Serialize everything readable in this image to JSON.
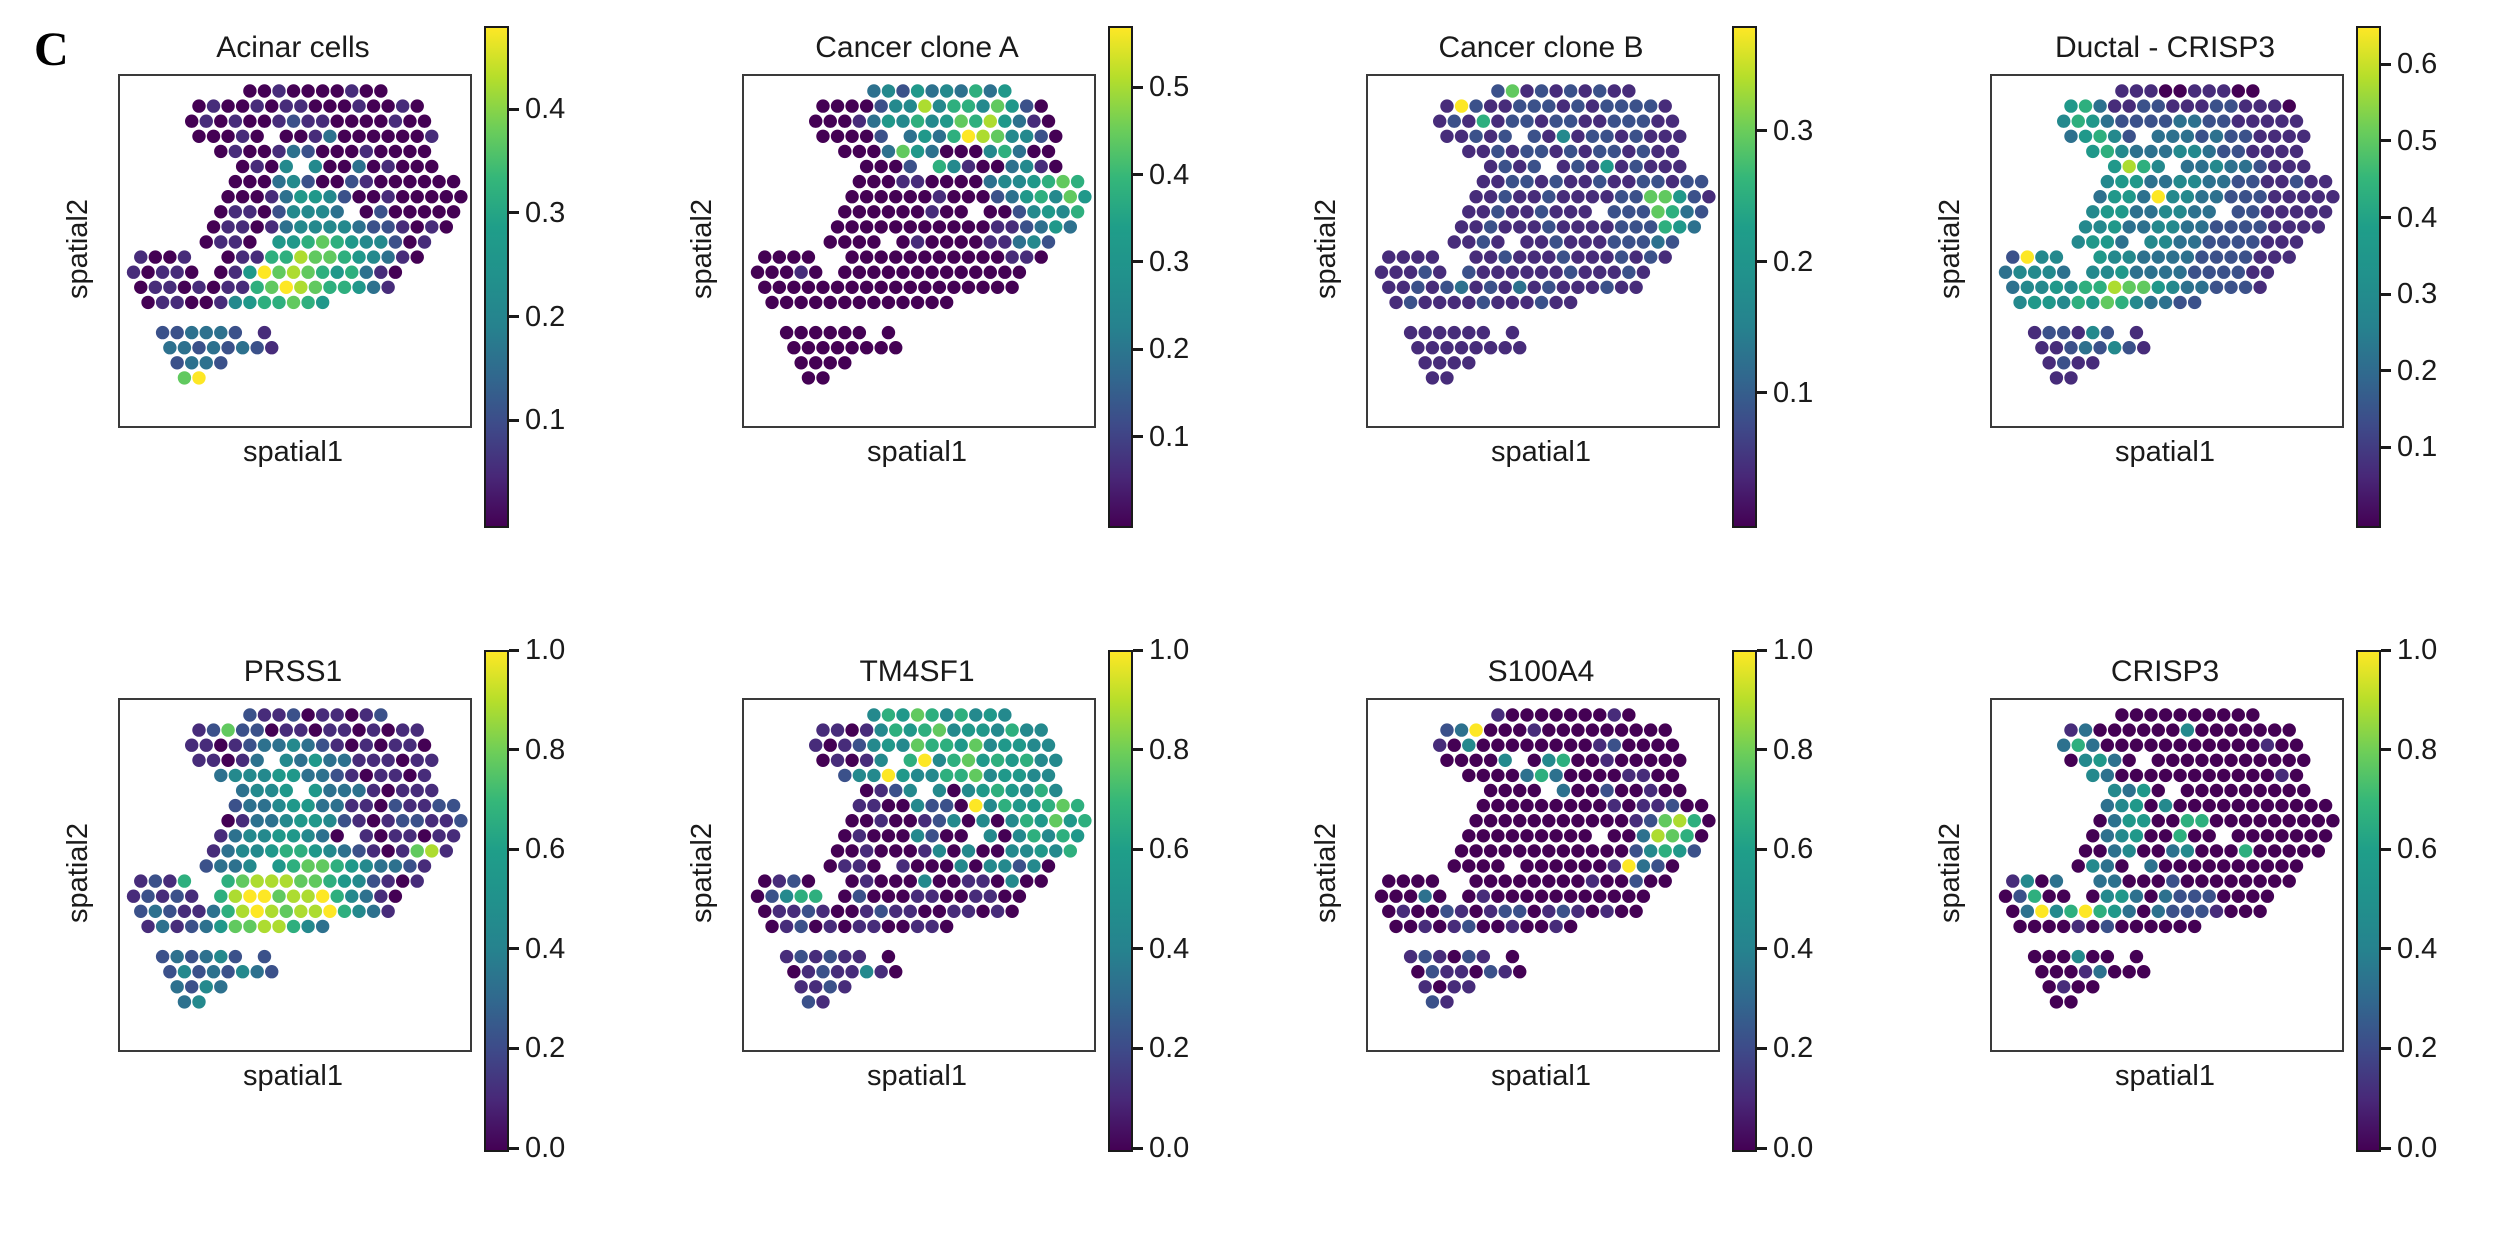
{
  "figure_label": "C",
  "chart_data": {
    "type": "scatter",
    "layout": "2 rows x 4 columns of spatial transcriptomics spot maps",
    "colormap": "viridis",
    "xlabel": "spatial1",
    "ylabel": "spatial2",
    "value_encoding": "values strings: '.' = no spot; digit d = relative intensity d/9 of (vmax - vmin) above vmin",
    "spot_grid_mask": [
      "........1111111111.....",
      "....1111111111111111...",
      "....11111111111111111..",
      "....11111.11111111111..",
      "......111111111111111..",
      ".......1111.111111111..",
      ".......1111111111111111",
      "......11111111111111111",
      "......111111111.1111111",
      ".....11111111111111111.",
      ".....1111.11111111111..",
      "1111..11111111111111...",
      "11111.1111111111111....",
      "111111111111111111.....",
      ".1111111111111.........",
      ".......................",
      "..111111.1.............",
      "..11111111.............",
      "...1111................",
      "...11.................."
    ],
    "subplots": [
      {
        "title": "Acinar cells",
        "colorbar": {
          "vmin": 0.0,
          "vmax": 0.48,
          "ticks": [
            0.4,
            0.3,
            0.2,
            0.1
          ]
        },
        "pattern_summary": "High expression concentrated in lower-central tissue region; low elsewhere; bright pair at tail tip",
        "values": [
          "........0010000100.....",
          "....0100101100010010...",
          "....01010012110000100..",
          "....00010.00130000001..",
          "......010013200010000..",
          ".......0104.400301000..",
          ".......0003420021000000",
          "......00013554200100000",
          "......011024443.0200000",
          ".....01101344443221010.",
          ".....0110.55676544201..",
          "1001..01166877654310...",
          "10110.0159787656310....",
          "011010116798766531.....",
          ".0110014566765.........",
          ".......................",
          "..223332.1.............",
          "..33232321.............",
          "...2332................",
          "...79.................."
        ]
      },
      {
        "title": "Cancer clone A",
        "colorbar": {
          "vmin": 0.0,
          "vmax": 0.57,
          "ticks": [
            0.5,
            0.4,
            0.3,
            0.2,
            0.1
          ]
        },
        "pattern_summary": "High along upper band and right margin; low in core, lower-left arm and tail",
        "values": [
          "........3425343635.....",
          "....0000244846647520...",
          "....00013546457685310..",
          "....00002.35369874420..",
          "......000375300046300..",
          ".......0002.641003410..",
          ".......0001100003445676",
          "......00000010002356475",
          "......000000100.0024546",
          ".....00000000000112353.",
          ".....0000.01000011342..",
          "0000..00000000000110...",
          "00010.0000000000000....",
          "000000000000000000.....",
          ".0000000000000.........",
          ".......................",
          "..000000.0.............",
          "..00000000.............",
          "...0000................",
          "...00.................."
        ]
      },
      {
        "title": "Cancer clone B",
        "colorbar": {
          "vmin": 0.0,
          "vmax": 0.38,
          "ticks": [
            0.3,
            0.2,
            0.1
          ]
        },
        "pattern_summary": "Uniformly low-moderate; isolated bright spots top-left and green cluster right-center",
        "values": [
          "........2712121211.....",
          "....1921122212122221...",
          "....12161221221122211..",
          "....11212.21412212111..",
          "......112122121221211..",
          ".......1212.121512111..",
          ".......1122121121122122",
          "......11211211112277521",
          "......112112111.2227632",
          ".....11211121111222653.",
          ".....1121.11211122232..",
          "1111..11211121112121...",
          "11121.2111111211121....",
          "112123121312111211.....",
          ".1211112111211.........",
          ".......................",
          "..111111.1.............",
          "..11111111.............",
          "...1111................",
          "...11.................."
        ]
      },
      {
        "title": "Ductal - CRISP3",
        "colorbar": {
          "vmin": 0.0,
          "vmax": 0.65,
          "ticks": [
            0.6,
            0.5,
            0.4,
            0.3,
            0.2,
            0.1
          ]
        },
        "pattern_summary": "Elevated along left margin and lower-left band; dark right half and tail",
        "values": [
          "........1110011100.....",
          "....5631122111221110...",
          "....46532222332211111..",
          "....35642.33323221111..",
          "......564333443221111..",
          ".......5864.334332111..",
          ".......4553344332211211",
          "......35539443322211111",
          "......455334433.2211111",
          ".....44533443322221111.",
          ".....4553.44332222111..",
          "2944..54433332222111...",
          "34443.4453333222211....",
          "344546687754332221.....",
          ".4554657643322.........",
          ".......................",
          "..122142.1.............",
          "..11232421.............",
          "...1211................",
          "...11.................."
        ]
      },
      {
        "title": "PRSS1",
        "colorbar": {
          "vmin": 0.0,
          "vmax": 1.0,
          "ticks": [
            1.0,
            0.8,
            0.6,
            0.4,
            0.2,
            0.0
          ]
        },
        "pattern_summary": "Strong in lower-central region with yellow maxima; moderate teal mid-tissue; mixed tail",
        "values": [
          "........2112011012.....",
          "....1272201101101011...",
          "....11012334321010110..",
          "....11013.43533111011..",
          "......344455332101101..",
          ".......3445.533310111..",
          ".......2334553311021122",
          "......01334554210122112",
          "......134455430.1011011",
          ".....13445665432101781.",
          ".....2334.56776543321..",
          "1216..67888776542101...",
          "12121.6899788964310....",
          "232113689878896431.....",
          ".1312357788643.........",
          ".......................",
          "..232342.2.............",
          "..24232432.............",
          "...3243................",
          "...34.................."
        ]
      },
      {
        "title": "TM4SF1",
        "colorbar": {
          "vmin": 0.0,
          "vmax": 1.0,
          "ticks": [
            1.0,
            0.8,
            0.6,
            0.4,
            0.2,
            0.0
          ]
        },
        "pattern_summary": "Strong across upper band and right margin with scattered yellow; dark core, lower-left arm and tail",
        "values": [
          "........4657646454.....",
          "....1101465674554644...",
          "....10124547665745544..",
          "....01014.69467565644..",
          "......244954466745544..",
          ".......0124.404565464..",
          ".......1100422094655676",
          "......00100124040465756",
          "......010004200.4046465",
          ".....00100014040044546.",
          ".....0110.10004044240..",
          "0120..01000400110400...",
          "02466.0200011001100....",
          "011210012110011010.....",
          ".0120101100110.........",
          ".......................",
          "..121211.0.............",
          "..01211410.............",
          "...1121................",
          "...21.................."
        ]
      },
      {
        "title": "S100A4",
        "colorbar": {
          "vmin": 0.0,
          "vmax": 1.0,
          "ticks": [
            1.0,
            0.8,
            0.6,
            0.4,
            0.2,
            0.0
          ]
        },
        "pattern_summary": "Mostly silent; yellow spot top-left; bright green cluster at right-center; sparse blue in lower band and tail",
        "values": [
          "........1000000010.....",
          "....2390001000000000...",
          "....10400000000120000..",
          "....00004.04600100000..",
          "......000036300001100..",
          ".......0000.300200100..",
          ".......0000000001011200",
          "......00000000000127860",
          "......000000000.0038760",
          ".....00000000000024652.",
          ".....0000.00000019320..",
          "0000..00000000100200...",
          "00030.0100000000000....",
          "010021012201210100.....",
          ".0010120010010.........",
          ".......................",
          "..121021.0.............",
          "..02110210.............",
          "...1011................",
          "...21.................."
        ]
      },
      {
        "title": "CRISP3",
        "colorbar": {
          "vmin": 0.0,
          "vmax": 1.0,
          "ticks": [
            1.0,
            0.8,
            0.6,
            0.4,
            0.2,
            0.0
          ]
        },
        "pattern_summary": "Mostly silent; scattered teal/green positives along left margin, center and lower-left band with two yellow spots",
        "values": [
          "........0000000000.....",
          "....1300000040000000...",
          "....36300000000000100..",
          "....04530.00000000000..",
          "......430000000000010..",
          ".......4350.000000000..",
          ".......3450400000000000",
          "......03550066000000000",
          "......034500600.0000000",
          ".....00340034000600000.",
          ".....0430.30000000000..",
          "1403..33000200000000...",
          "02600.0453032220000....",
          "039469653032221000.....",
          ".0000102000000.........",
          ".......................",
          "..000400.0.............",
          "..00013000.............",
          "...0100................",
          "...00.................."
        ]
      }
    ]
  }
}
